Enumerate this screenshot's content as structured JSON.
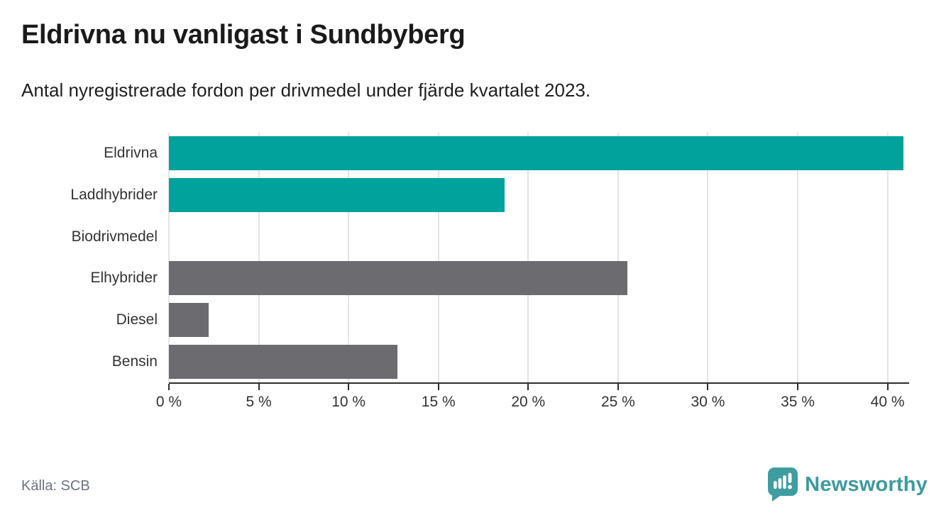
{
  "header": {
    "title": "Eldrivna nu vanligast i Sundbyberg",
    "subtitle": "Antal nyregistrerade fordon per drivmedel under fjärde kvartalet 2023."
  },
  "chart_data": {
    "type": "bar",
    "orientation": "horizontal",
    "title": "Eldrivna nu vanligast i Sundbyberg",
    "subtitle": "Antal nyregistrerade fordon per drivmedel under fjärde kvartalet 2023.",
    "categories": [
      "Eldrivna",
      "Laddhybrider",
      "Biodrivmedel",
      "Elhybrider",
      "Diesel",
      "Bensin"
    ],
    "values": [
      40.9,
      18.7,
      0,
      25.5,
      2.2,
      12.7
    ],
    "unit": "%",
    "bar_colors": [
      "#00a29b",
      "#00a29b",
      "#6b6b70",
      "#6b6b70",
      "#6b6b70",
      "#6b6b70"
    ],
    "highlight_color": "#00a29b",
    "default_color": "#6b6b70",
    "xlim": [
      0,
      41.2
    ],
    "x_ticks": [
      0,
      5,
      10,
      15,
      20,
      25,
      30,
      35,
      40
    ],
    "x_tick_labels": [
      "0 %",
      "5 %",
      "10 %",
      "15 %",
      "20 %",
      "25 %",
      "30 %",
      "35 %",
      "40 %"
    ],
    "grid": "vertical",
    "legend": "none"
  },
  "footer": {
    "source": "Källa: SCB",
    "brand": "Newsworthy"
  },
  "colors": {
    "accent_teal": "#00a29b",
    "neutral_gray": "#6b6b70",
    "axis": "#2e2e2e",
    "gridline": "#e4e4e4",
    "brand_teal": "#3d9a9e"
  }
}
